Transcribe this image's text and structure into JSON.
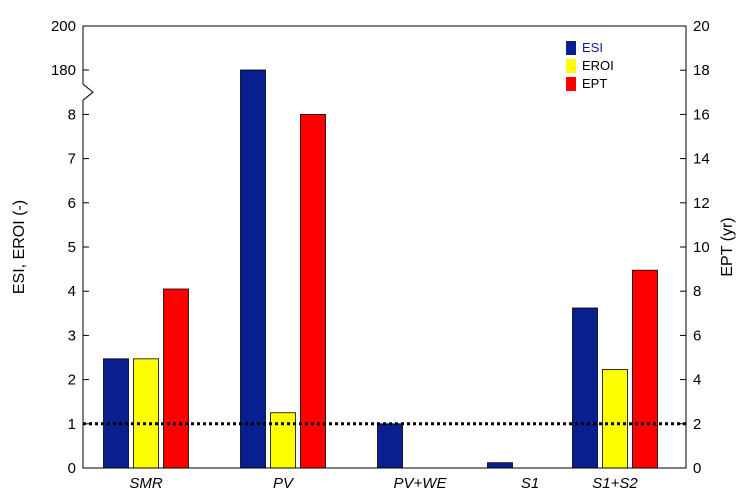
{
  "chart_data": {
    "type": "bar",
    "title": "",
    "categories": [
      "SMR",
      "PV",
      "PV+WE",
      "S1",
      "S1+S2"
    ],
    "series": [
      {
        "name": "ESI",
        "axis": "left",
        "color": "#0a1f8f",
        "values": [
          2.47,
          180,
          1.0,
          0.12,
          3.62
        ]
      },
      {
        "name": "EROI",
        "axis": "left",
        "color": "#ffff00",
        "values": [
          2.47,
          1.25,
          0,
          0,
          2.23
        ]
      },
      {
        "name": "EPT",
        "axis": "right",
        "color": "#ff0000",
        "values": [
          8.1,
          16.0,
          0,
          0,
          8.95
        ]
      }
    ],
    "ylabel": "ESI, EROI (-)",
    "y2label": "EPT (yr)",
    "ylim": [
      0,
      200
    ],
    "y_axis_break": "between 8 and 180",
    "y_ticks": [
      "0",
      "1",
      "2",
      "3",
      "4",
      "5",
      "6",
      "7",
      "8",
      "180",
      "200"
    ],
    "y2lim": [
      0,
      20
    ],
    "y2_ticks": [
      "0",
      "2",
      "4",
      "6",
      "8",
      "10",
      "12",
      "14",
      "16",
      "18",
      "20"
    ],
    "reference_line": {
      "axis": "left",
      "value": 1,
      "style": "dotted"
    },
    "legend_position": "top-right",
    "grid": false
  }
}
